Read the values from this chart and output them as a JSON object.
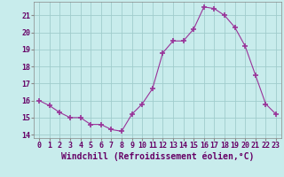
{
  "x": [
    0,
    1,
    2,
    3,
    4,
    5,
    6,
    7,
    8,
    9,
    10,
    11,
    12,
    13,
    14,
    15,
    16,
    17,
    18,
    19,
    20,
    21,
    22,
    23
  ],
  "y": [
    16.0,
    15.7,
    15.3,
    15.0,
    15.0,
    14.6,
    14.6,
    14.3,
    14.2,
    15.2,
    15.8,
    16.7,
    18.8,
    19.5,
    19.5,
    20.2,
    21.5,
    21.4,
    21.0,
    20.3,
    19.2,
    17.5,
    15.8,
    15.2
  ],
  "line_color": "#993399",
  "marker": "+",
  "marker_size": 4,
  "bg_color": "#c8ecec",
  "grid_color": "#a0cccc",
  "xlabel": "Windchill (Refroidissement éolien,°C)",
  "xlabel_fontsize": 7,
  "ylabel_ticks": [
    14,
    15,
    16,
    17,
    18,
    19,
    20,
    21
  ],
  "xlim": [
    -0.5,
    23.5
  ],
  "ylim": [
    13.8,
    21.8
  ],
  "xtick_labels": [
    "0",
    "1",
    "2",
    "3",
    "4",
    "5",
    "6",
    "7",
    "8",
    "9",
    "10",
    "11",
    "12",
    "13",
    "14",
    "15",
    "16",
    "17",
    "18",
    "19",
    "20",
    "21",
    "22",
    "23"
  ],
  "tick_fontsize": 6,
  "label_color": "#660066"
}
